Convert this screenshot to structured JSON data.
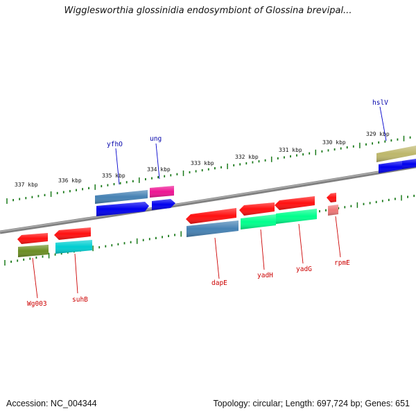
{
  "map": {
    "title": "Wigglesworthia glossinidia endosymbiont of Glossina brevipal...",
    "accession_text": "Accession: NC_004344",
    "topology_text": "Topology: circular; Length: 697,724 bp; Genes: 651"
  },
  "colors": {
    "backbone": "#808080",
    "tick": "#1a7a1a",
    "label_upper": "#0000aa",
    "label_lower": "#cc0000",
    "leader_upper": "#0000cc",
    "leader_lower": "#cc0000"
  },
  "scale": {
    "labels": [
      "337 kbp",
      "336 kbp",
      "335 kbp",
      "334 kbp",
      "333 kbp",
      "332 kbp",
      "331 kbp",
      "330 kbp",
      "329 kbp"
    ]
  },
  "genes": {
    "upper_labels": [
      "yfhO",
      "ung",
      "hslV"
    ],
    "lower_labels": [
      "Wg003",
      "suhB",
      "dapE",
      "yadH",
      "yadG",
      "rpmE"
    ]
  },
  "feature_colors": {
    "red": "#ff1010",
    "blue": "#0000ee",
    "steelblue": "#4682b4",
    "magenta": "#ee1493",
    "olive": "#6b8e23",
    "cyan": "#00ced1",
    "springgreen": "#00ff8c",
    "khaki": "#bdb76b",
    "lightred": "#ee7777"
  }
}
